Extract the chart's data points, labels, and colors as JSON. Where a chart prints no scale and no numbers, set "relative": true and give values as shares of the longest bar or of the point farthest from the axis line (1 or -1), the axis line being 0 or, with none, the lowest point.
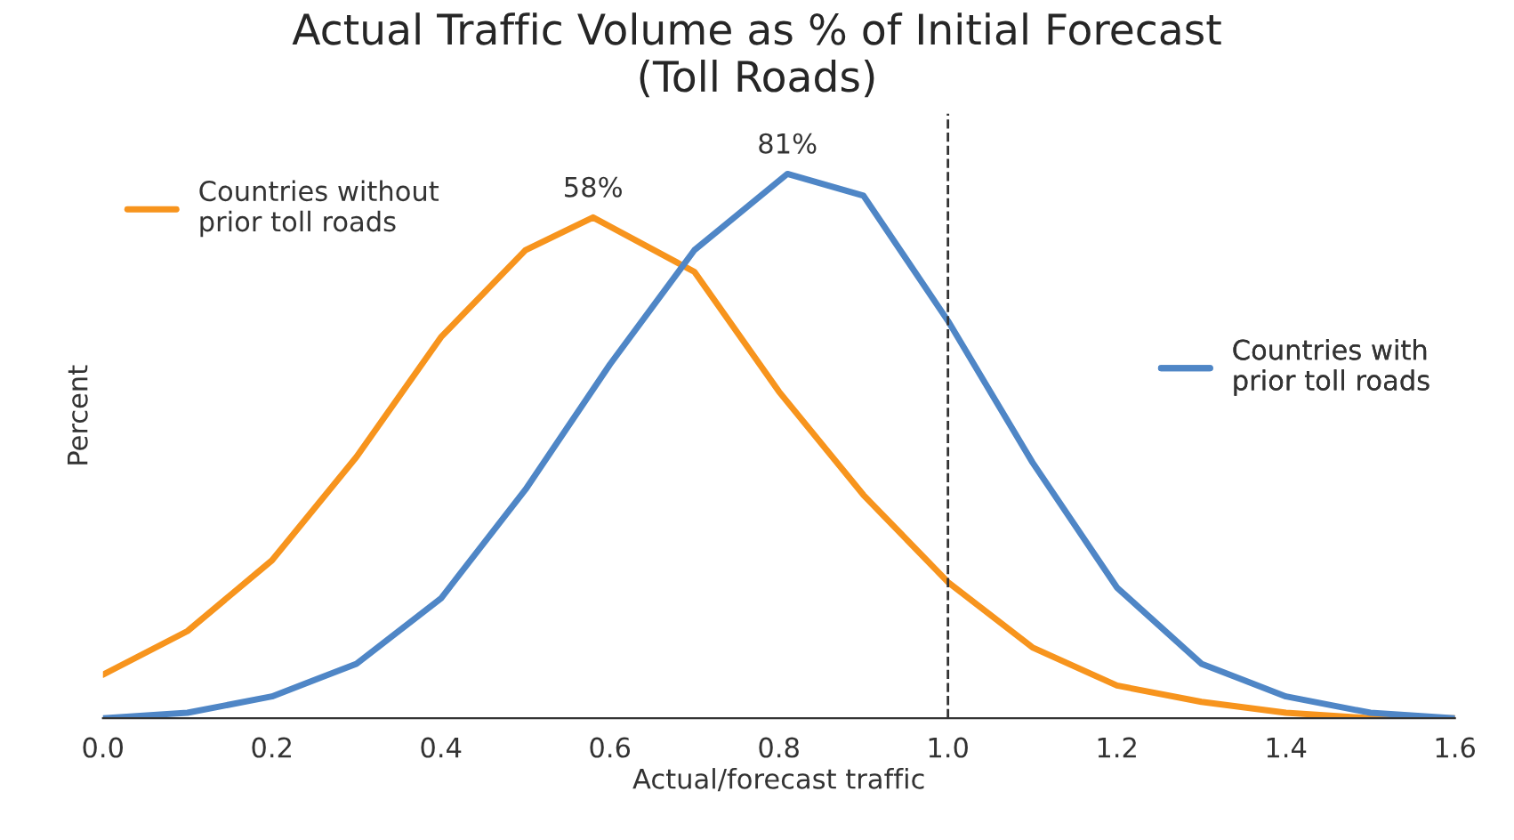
{
  "chart_data": {
    "type": "line",
    "title": "Actual Traffic Volume as % of Initial Forecast\n(Toll Roads)",
    "xlabel": "Actual/forecast traffic",
    "ylabel": "Percent",
    "relative": true,
    "xlim": [
      0,
      1.6
    ],
    "xticks": [
      {
        "value": 0,
        "label": "0.0"
      },
      {
        "value": 0.2,
        "label": "0.2"
      },
      {
        "value": 0.4,
        "label": "0.4"
      },
      {
        "value": 0.6,
        "label": "0.6"
      },
      {
        "value": 0.8,
        "label": "0.8"
      },
      {
        "value": 1.0,
        "label": "1.0"
      },
      {
        "value": 1.2,
        "label": "1.2"
      },
      {
        "value": 1.4,
        "label": "1.4"
      },
      {
        "value": 1.6,
        "label": "1.6"
      }
    ],
    "tick_labels": "x",
    "grid": false,
    "legend": "top left",
    "series": [
      {
        "name": "Countries without\nprior toll roads",
        "color": "#f7941d",
        "x": [
          0,
          0.1,
          0.2,
          0.3,
          0.4,
          0.5,
          0.58,
          0.7,
          0.8,
          0.9,
          1.0,
          1.1,
          1.2,
          1.3,
          1.4,
          1.5,
          1.6
        ],
        "values": [
          0.08,
          0.16,
          0.29,
          0.48,
          0.7,
          0.86,
          0.92,
          0.82,
          0.6,
          0.41,
          0.25,
          0.13,
          0.06,
          0.03,
          0.01,
          0.0,
          0.0
        ]
      },
      {
        "name": "Countries with\nprior toll roads",
        "color": "#4f86c6",
        "x": [
          0,
          0.1,
          0.2,
          0.3,
          0.4,
          0.5,
          0.6,
          0.7,
          0.81,
          0.9,
          1.0,
          1.1,
          1.2,
          1.3,
          1.4,
          1.5,
          1.6
        ],
        "values": [
          0.0,
          0.01,
          0.04,
          0.1,
          0.22,
          0.42,
          0.65,
          0.86,
          1.0,
          0.96,
          0.73,
          0.47,
          0.24,
          0.1,
          0.04,
          0.01,
          0.0
        ]
      }
    ],
    "annotations": [
      {
        "text": "58%",
        "x": 0.58,
        "y": 0.92
      },
      {
        "text": "81%",
        "x": 0.81,
        "y": 1.0
      }
    ],
    "ref_lines": [
      {
        "axis": "x",
        "value": 1.0,
        "color": "#333333",
        "line_style": "dashed"
      }
    ]
  }
}
